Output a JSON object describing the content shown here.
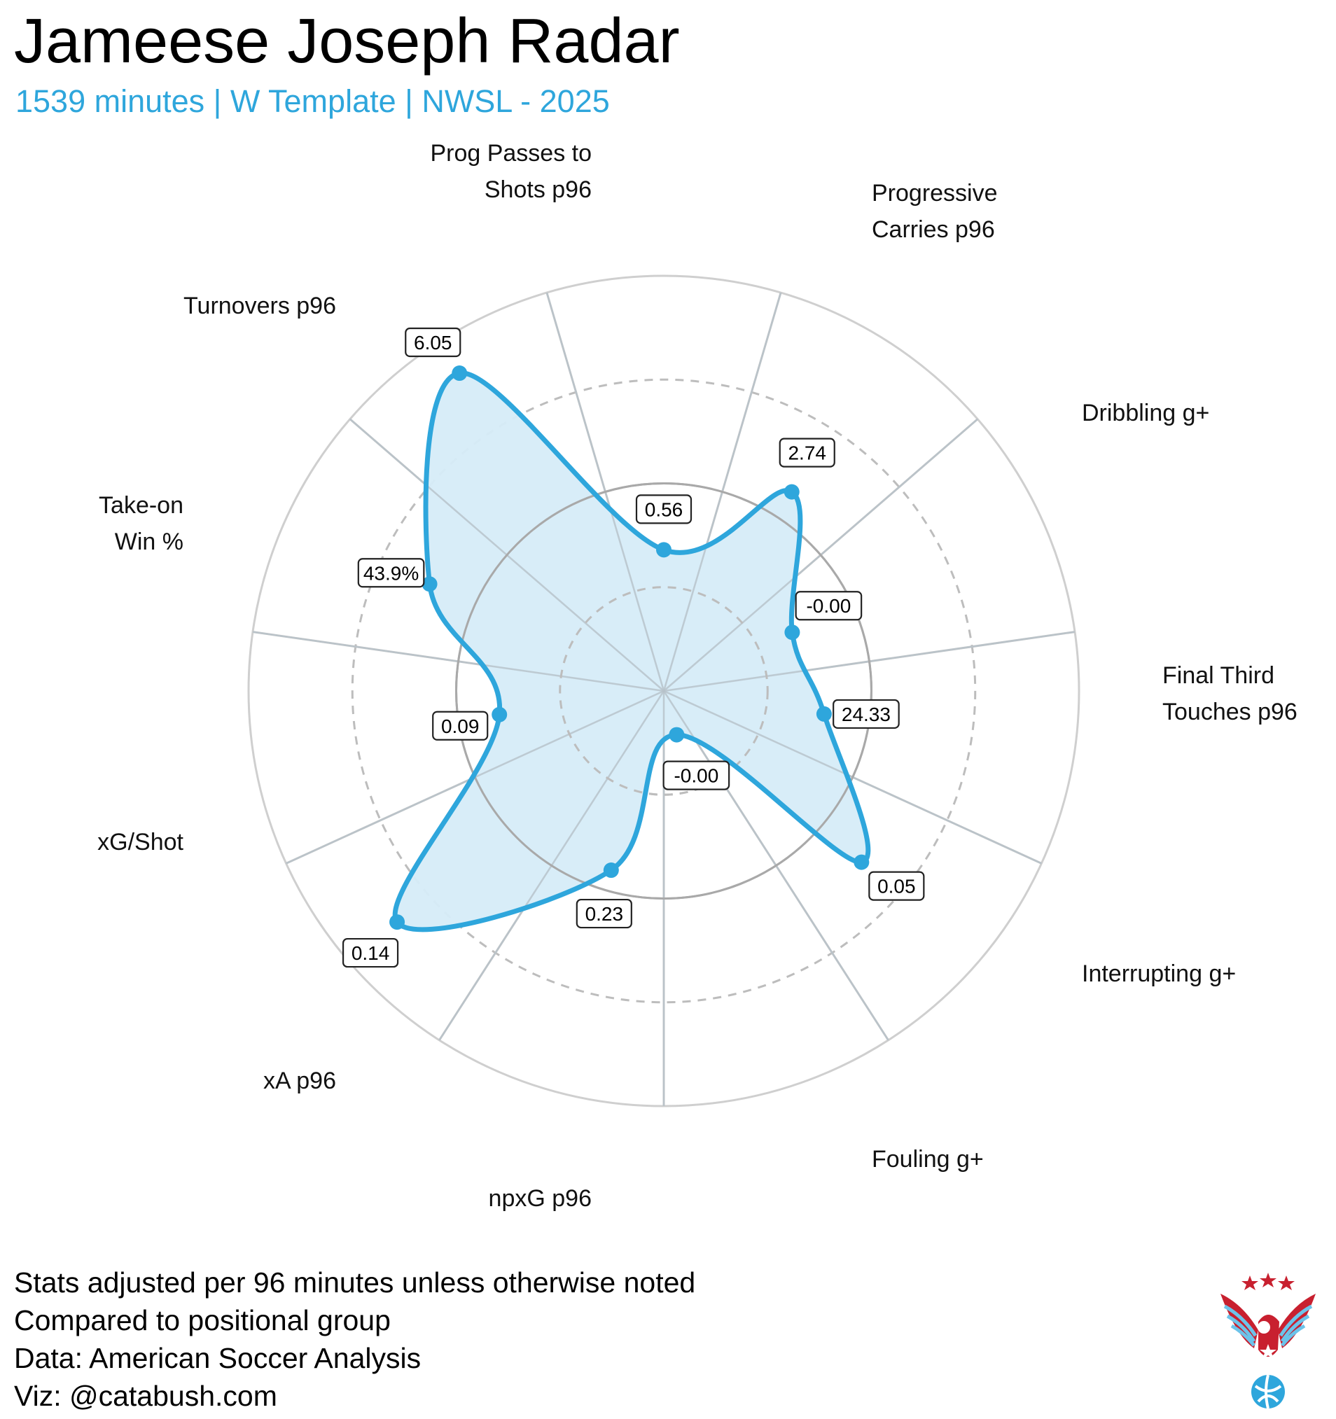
{
  "title": "Jameese Joseph Radar",
  "subtitle": "1539 minutes | W Template | NWSL - 2025",
  "accent_color": "#2ea6dc",
  "fill_color": "#d6ecf8",
  "footer": {
    "lines": [
      "Stats adjusted per 96 minutes unless otherwise noted",
      "Compared to positional group",
      "Data: American Soccer Analysis",
      "Viz: @catabush.com"
    ]
  },
  "logo": {
    "icon": "eagle-soccer-ball-logo"
  },
  "chart_data": {
    "type": "radar",
    "scale": "percentile",
    "range": [
      0,
      100
    ],
    "grid": true,
    "axes": [
      {
        "label": [
          "Prog Passes to",
          "Shots p96"
        ],
        "value": 0.56,
        "display": "0.56",
        "percentile": 34
      },
      {
        "label": [
          "Progressive",
          "Carries p96"
        ],
        "value": 2.74,
        "display": "2.74",
        "percentile": 57
      },
      {
        "label": [
          "Dribbling g+"
        ],
        "value": -0.0,
        "display": "-0.00",
        "percentile": 34
      },
      {
        "label": [
          "Final Third",
          "Touches p96"
        ],
        "value": 24.33,
        "display": "24.33",
        "percentile": 39
      },
      {
        "label": [
          "Interrupting g+"
        ],
        "value": 0.05,
        "display": "0.05",
        "percentile": 63
      },
      {
        "label": [
          "Fouling g+"
        ],
        "value": -0.0,
        "display": "-0.00",
        "percentile": 11
      },
      {
        "label": [
          "npxG p96"
        ],
        "value": 0.23,
        "display": "0.23",
        "percentile": 45
      },
      {
        "label": [
          "xA p96"
        ],
        "value": 0.14,
        "display": "0.14",
        "percentile": 85
      },
      {
        "label": [
          "xG/Shot"
        ],
        "value": 0.09,
        "display": "0.09",
        "percentile": 40
      },
      {
        "label": [
          "Take-on",
          "Win %"
        ],
        "value": 43.9,
        "display": "43.9%",
        "percentile": 62
      },
      {
        "label": [
          "Turnovers p96"
        ],
        "value": 6.05,
        "display": "6.05",
        "percentile": 91
      }
    ]
  }
}
